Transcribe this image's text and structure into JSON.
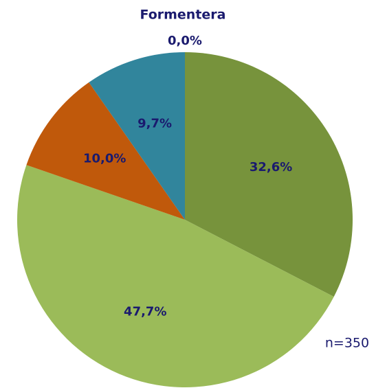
{
  "chart_data": {
    "type": "pie",
    "title": "Formentera",
    "values": [
      32.6,
      47.7,
      10.0,
      9.7,
      0.0
    ],
    "value_labels": [
      "32,6%",
      "47,7%",
      "10,0%",
      "9,7%",
      "0,0%"
    ],
    "colors": [
      "#77933c",
      "#9bbb59",
      "#c0590b",
      "#31859c",
      "#8064a2"
    ],
    "annotation": "n=350"
  }
}
